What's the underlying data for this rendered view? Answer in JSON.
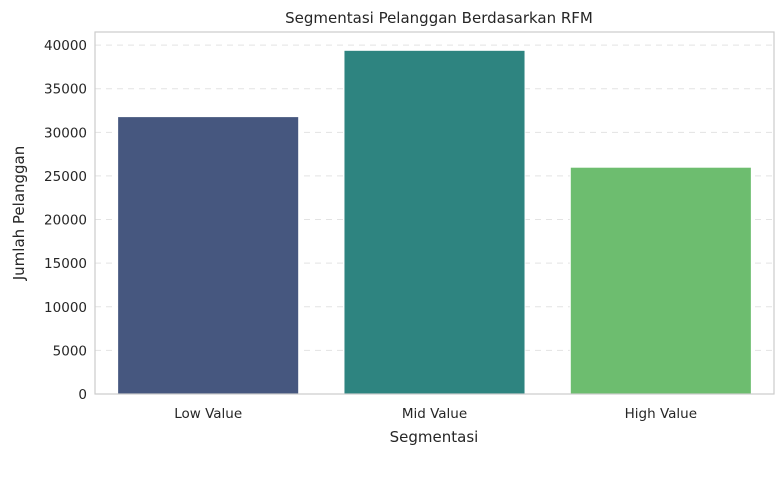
{
  "chart_data": {
    "type": "bar",
    "title": "Segmentasi Pelanggan Berdasarkan RFM",
    "xlabel": "Segmentasi",
    "ylabel": "Jumlah Pelanggan",
    "categories": [
      "Low Value",
      "Mid Value",
      "High Value"
    ],
    "values": [
      31800,
      39400,
      26000
    ],
    "colors": [
      "#46577f",
      "#2e8480",
      "#6dbd6f"
    ],
    "ylim": [
      0,
      41500
    ],
    "yticks": [
      0,
      5000,
      10000,
      15000,
      20000,
      25000,
      30000,
      35000,
      40000
    ],
    "grid": true,
    "legend": "none"
  }
}
